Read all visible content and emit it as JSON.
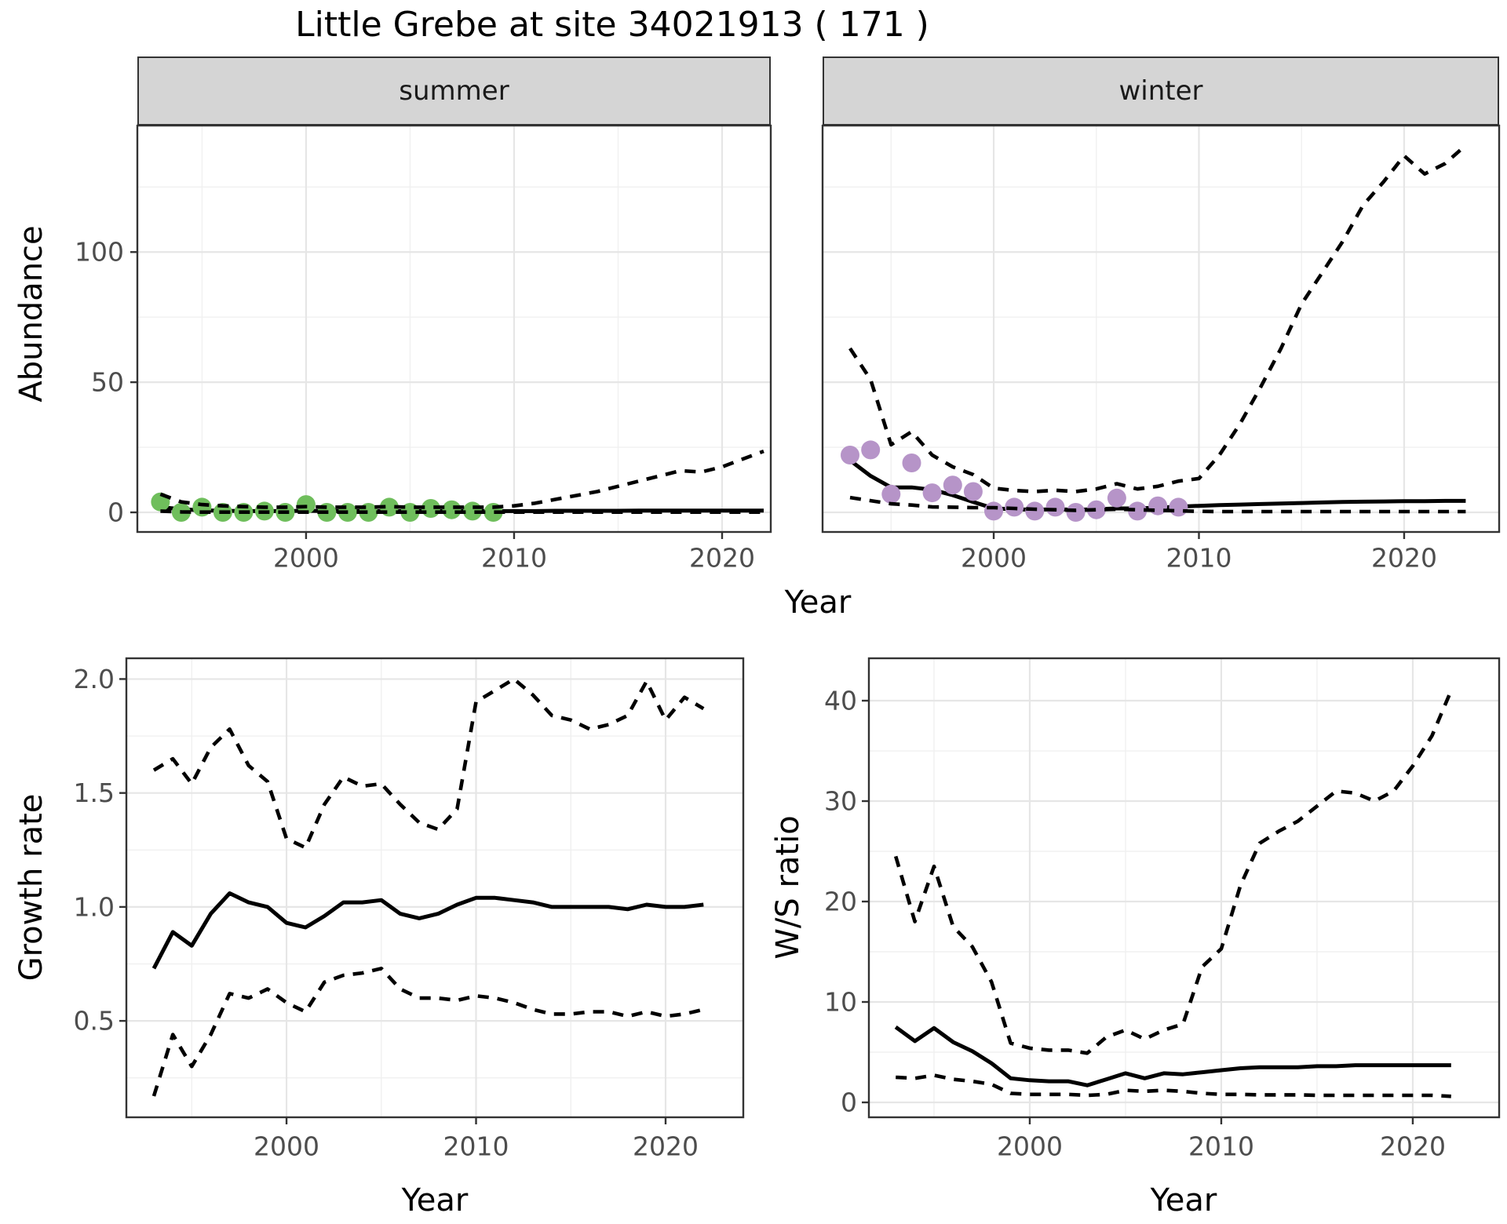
{
  "title": "Little Grebe at site 34021913 ( 171 )",
  "shared_x_label": "Year",
  "chart_data": [
    {
      "id": "abundance_summer",
      "type": "line",
      "facet_label": "summer",
      "xlabel": "Year",
      "ylabel": "Abundance",
      "x_ticks": [
        2000,
        2010,
        2020
      ],
      "x_tick_labels": [
        "2000",
        "2010",
        "2020"
      ],
      "x_minor": [
        1995,
        2005,
        2015,
        2025
      ],
      "y_ticks": [
        0,
        50,
        100
      ],
      "y_tick_labels": [
        "0",
        "50",
        "100"
      ],
      "y_minor": [
        25,
        75,
        125
      ],
      "xlim": [
        1991.89,
        2022.34
      ],
      "ylim": [
        -7.53,
        148.6
      ],
      "grid": true,
      "legend_position": "none",
      "point_color": "#6FBE5C",
      "points": {
        "name": "observed",
        "years": [
          1993,
          1994,
          1995,
          1996,
          1997,
          1998,
          1999,
          2000,
          2001,
          2002,
          2003,
          2004,
          2005,
          2006,
          2007,
          2008,
          2009
        ],
        "values": [
          4,
          0,
          2,
          0,
          0,
          0.5,
          0,
          3,
          0,
          0,
          0,
          2,
          0,
          1.5,
          1,
          0.5,
          0
        ]
      },
      "series": [
        {
          "name": "mean",
          "linetype": "solid",
          "years": [
            1993,
            1994,
            1995,
            1996,
            1997,
            1998,
            1999,
            2000,
            2001,
            2002,
            2003,
            2004,
            2005,
            2006,
            2007,
            2008,
            2009,
            2010,
            2011,
            2012,
            2013,
            2014,
            2015,
            2016,
            2017,
            2018,
            2019,
            2020,
            2021,
            2022
          ],
          "values": [
            2,
            1.2,
            0.8,
            0.6,
            0.5,
            0.5,
            0.5,
            0.6,
            0.5,
            0.5,
            0.5,
            0.5,
            0.5,
            0.5,
            0.5,
            0.5,
            0.5,
            0.5,
            0.5,
            0.6,
            0.6,
            0.6,
            0.6,
            0.7,
            0.7,
            0.7,
            0.7,
            0.7,
            0.7,
            0.7
          ]
        },
        {
          "name": "upper_95ci",
          "linetype": "dashed",
          "years": [
            1993,
            1994,
            1995,
            1996,
            1997,
            1998,
            1999,
            2000,
            2001,
            2002,
            2003,
            2004,
            2005,
            2006,
            2007,
            2008,
            2009,
            2010,
            2011,
            2012,
            2013,
            2014,
            2015,
            2016,
            2017,
            2018,
            2019,
            2020,
            2021,
            2022
          ],
          "values": [
            7,
            4,
            3,
            2.5,
            2.2,
            2,
            2,
            2.2,
            2,
            2,
            2,
            2.2,
            2,
            2,
            2,
            2,
            2,
            2.5,
            3.5,
            5,
            6.5,
            8,
            10,
            12,
            14,
            16,
            15.5,
            17.5,
            20.5,
            23.5
          ]
        },
        {
          "name": "lower_95ci",
          "linetype": "dashed",
          "years": [
            1993,
            1994,
            1995,
            1996,
            1997,
            1998,
            1999,
            2000,
            2001,
            2002,
            2003,
            2004,
            2005,
            2006,
            2007,
            2008,
            2009,
            2010,
            2011,
            2012,
            2013,
            2014,
            2015,
            2016,
            2017,
            2018,
            2019,
            2020,
            2021,
            2022
          ],
          "values": [
            0.5,
            0.2,
            0.1,
            0.1,
            0.1,
            0.1,
            0.1,
            0.1,
            0.1,
            0.1,
            0.1,
            0.1,
            0.1,
            0.1,
            0.1,
            0.1,
            0.1,
            0.1,
            0.1,
            0.1,
            0.1,
            0.1,
            0.1,
            0.1,
            0.1,
            0.1,
            0.1,
            0.1,
            0.1,
            0.1
          ]
        }
      ]
    },
    {
      "id": "abundance_winter",
      "type": "line",
      "facet_label": "winter",
      "xlabel": "Year",
      "ylabel": "Abundance",
      "x_ticks": [
        2000,
        2010,
        2020
      ],
      "x_tick_labels": [
        "2000",
        "2010",
        "2020"
      ],
      "x_minor": [
        1995,
        2005,
        2015,
        2025
      ],
      "y_ticks": [
        0,
        50,
        100
      ],
      "y_tick_labels": [
        "0",
        "50",
        "100"
      ],
      "y_minor": [
        25,
        75,
        125
      ],
      "xlim": [
        1991.66,
        2024.63
      ],
      "ylim": [
        -7.53,
        148.6
      ],
      "grid": true,
      "legend_position": "none",
      "point_color": "#B694C8",
      "points": {
        "name": "observed",
        "years": [
          1993,
          1994,
          1995,
          1996,
          1997,
          1998,
          1999,
          2000,
          2001,
          2002,
          2003,
          2004,
          2005,
          2006,
          2007,
          2008,
          2009
        ],
        "values": [
          22,
          24,
          7,
          19,
          7.5,
          10.5,
          8,
          0.5,
          2,
          0.5,
          2,
          0,
          1,
          5.5,
          0.5,
          2.5,
          2
        ]
      },
      "series": [
        {
          "name": "mean",
          "linetype": "solid",
          "years": [
            1993,
            1994,
            1995,
            1996,
            1997,
            1998,
            1999,
            2000,
            2001,
            2002,
            2003,
            2004,
            2005,
            2006,
            2007,
            2008,
            2009,
            2010,
            2011,
            2012,
            2013,
            2014,
            2015,
            2016,
            2017,
            2018,
            2019,
            2020,
            2021,
            2022,
            2023
          ],
          "values": [
            20,
            14,
            9.6,
            9.6,
            8.7,
            6.6,
            4,
            1.5,
            1.2,
            1,
            1.2,
            1,
            1.2,
            1.5,
            1.5,
            1.8,
            2.2,
            2.5,
            2.8,
            3,
            3.2,
            3.4,
            3.6,
            3.8,
            4,
            4.1,
            4.2,
            4.3,
            4.3,
            4.4,
            4.4
          ]
        },
        {
          "name": "upper_95ci",
          "linetype": "dashed",
          "years": [
            1993,
            1994,
            1995,
            1996,
            1997,
            1998,
            1999,
            2000,
            2001,
            2002,
            2003,
            2004,
            2005,
            2006,
            2007,
            2008,
            2009,
            2010,
            2011,
            2012,
            2013,
            2014,
            2015,
            2016,
            2017,
            2018,
            2019,
            2020,
            2021,
            2022,
            2023
          ],
          "values": [
            63,
            51,
            26,
            31,
            22,
            17.5,
            14.5,
            9.3,
            8.4,
            8,
            8.5,
            8,
            9,
            11,
            9,
            10,
            12,
            13,
            22,
            34,
            48,
            63,
            80,
            92,
            104,
            118,
            127,
            137,
            130,
            134,
            141
          ]
        },
        {
          "name": "lower_95ci",
          "linetype": "dashed",
          "years": [
            1993,
            1994,
            1995,
            1996,
            1997,
            1998,
            1999,
            2000,
            2001,
            2002,
            2003,
            2004,
            2005,
            2006,
            2007,
            2008,
            2009,
            2010,
            2011,
            2012,
            2013,
            2014,
            2015,
            2016,
            2017,
            2018,
            2019,
            2020,
            2021,
            2022,
            2023
          ],
          "values": [
            5.7,
            4.5,
            3.3,
            2.8,
            2.1,
            2,
            1.8,
            1.8,
            1.5,
            1.2,
            1,
            0.8,
            1,
            1.2,
            1,
            0.8,
            0.6,
            0.4,
            0.3,
            0.3,
            0.3,
            0.3,
            0.3,
            0.3,
            0.3,
            0.3,
            0.3,
            0.3,
            0.3,
            0.3,
            0.3
          ]
        }
      ]
    },
    {
      "id": "growth_rate",
      "type": "line",
      "facet_label": "",
      "xlabel": "Year",
      "ylabel": "Growth rate",
      "x_ticks": [
        2000,
        2010,
        2020
      ],
      "x_tick_labels": [
        "2000",
        "2010",
        "2020"
      ],
      "x_minor": [
        1995,
        2005,
        2015,
        2025
      ],
      "y_ticks": [
        0.5,
        1.0,
        1.5,
        2.0
      ],
      "y_tick_labels": [
        "0.5",
        "1.0",
        "1.5",
        "2.0"
      ],
      "y_minor": [
        0.25,
        0.75,
        1.25,
        1.75
      ],
      "xlim": [
        1991.55,
        2024.1
      ],
      "ylim": [
        0.077,
        2.091
      ],
      "grid": true,
      "legend_position": "none",
      "series": [
        {
          "name": "mean",
          "linetype": "solid",
          "years": [
            1993,
            1994,
            1995,
            1996,
            1997,
            1998,
            1999,
            2000,
            2001,
            2002,
            2003,
            2004,
            2005,
            2006,
            2007,
            2008,
            2009,
            2010,
            2011,
            2012,
            2013,
            2014,
            2015,
            2016,
            2017,
            2018,
            2019,
            2020,
            2021,
            2022
          ],
          "values": [
            0.73,
            0.89,
            0.83,
            0.97,
            1.06,
            1.02,
            1.0,
            0.93,
            0.91,
            0.96,
            1.02,
            1.02,
            1.03,
            0.97,
            0.95,
            0.97,
            1.01,
            1.04,
            1.04,
            1.03,
            1.02,
            1.0,
            1.0,
            1.0,
            1.0,
            0.99,
            1.01,
            1.0,
            1.0,
            1.01
          ]
        },
        {
          "name": "upper_95ci",
          "linetype": "dashed",
          "years": [
            1993,
            1994,
            1995,
            1996,
            1997,
            1998,
            1999,
            2000,
            2001,
            2002,
            2003,
            2004,
            2005,
            2006,
            2007,
            2008,
            2009,
            2010,
            2011,
            2012,
            2013,
            2014,
            2015,
            2016,
            2017,
            2018,
            2019,
            2020,
            2021,
            2022
          ],
          "values": [
            1.6,
            1.65,
            1.54,
            1.7,
            1.78,
            1.62,
            1.55,
            1.3,
            1.26,
            1.45,
            1.57,
            1.53,
            1.54,
            1.45,
            1.37,
            1.34,
            1.43,
            1.9,
            1.95,
            2.0,
            1.93,
            1.84,
            1.82,
            1.78,
            1.8,
            1.84,
            1.99,
            1.82,
            1.92,
            1.87
          ]
        },
        {
          "name": "lower_95ci",
          "linetype": "dashed",
          "years": [
            1993,
            1994,
            1995,
            1996,
            1997,
            1998,
            1999,
            2000,
            2001,
            2002,
            2003,
            2004,
            2005,
            2006,
            2007,
            2008,
            2009,
            2010,
            2011,
            2012,
            2013,
            2014,
            2015,
            2016,
            2017,
            2018,
            2019,
            2020,
            2021,
            2022
          ],
          "values": [
            0.17,
            0.44,
            0.3,
            0.44,
            0.62,
            0.6,
            0.64,
            0.58,
            0.54,
            0.67,
            0.7,
            0.71,
            0.73,
            0.64,
            0.6,
            0.6,
            0.59,
            0.61,
            0.6,
            0.58,
            0.55,
            0.53,
            0.53,
            0.54,
            0.54,
            0.52,
            0.54,
            0.52,
            0.53,
            0.55
          ]
        }
      ]
    },
    {
      "id": "ws_ratio",
      "type": "line",
      "facet_label": "",
      "xlabel": "Year",
      "ylabel": "W/S ratio",
      "x_ticks": [
        2000,
        2010,
        2020
      ],
      "x_tick_labels": [
        "2000",
        "2010",
        "2020"
      ],
      "x_minor": [
        1995,
        2005,
        2015,
        2025
      ],
      "y_ticks": [
        0,
        10,
        20,
        30,
        40
      ],
      "y_tick_labels": [
        "0",
        "10",
        "20",
        "30",
        "40"
      ],
      "y_minor": [
        5,
        15,
        25,
        35
      ],
      "xlim": [
        1991.6,
        2024.51
      ],
      "ylim": [
        -1.484,
        44.22
      ],
      "grid": true,
      "legend_position": "none",
      "series": [
        {
          "name": "mean",
          "linetype": "solid",
          "years": [
            1993,
            1994,
            1995,
            1996,
            1997,
            1998,
            1999,
            2000,
            2001,
            2002,
            2003,
            2004,
            2005,
            2006,
            2007,
            2008,
            2009,
            2010,
            2011,
            2012,
            2013,
            2014,
            2015,
            2016,
            2017,
            2018,
            2019,
            2020,
            2021,
            2022
          ],
          "values": [
            7.5,
            6.1,
            7.4,
            6.0,
            5.1,
            3.9,
            2.4,
            2.2,
            2.1,
            2.1,
            1.7,
            2.3,
            2.9,
            2.4,
            2.9,
            2.8,
            3.0,
            3.2,
            3.4,
            3.5,
            3.5,
            3.5,
            3.6,
            3.6,
            3.7,
            3.7,
            3.7,
            3.7,
            3.7,
            3.7
          ]
        },
        {
          "name": "upper_95ci",
          "linetype": "dashed",
          "years": [
            1993,
            1994,
            1995,
            1996,
            1997,
            1998,
            1999,
            2000,
            2001,
            2002,
            2003,
            2004,
            2005,
            2006,
            2007,
            2008,
            2009,
            2010,
            2011,
            2012,
            2013,
            2014,
            2015,
            2016,
            2017,
            2018,
            2019,
            2020,
            2021,
            2022
          ],
          "values": [
            24.5,
            18,
            23.5,
            17.5,
            15.5,
            12,
            5.9,
            5.4,
            5.2,
            5.2,
            4.9,
            6.5,
            7.2,
            6.3,
            7.2,
            7.8,
            13.5,
            15.3,
            21.6,
            25.8,
            27,
            28,
            29.5,
            31,
            30.8,
            30,
            31,
            33.5,
            36.5,
            41
          ]
        },
        {
          "name": "lower_95ci",
          "linetype": "dashed",
          "years": [
            1993,
            1994,
            1995,
            1996,
            1997,
            1998,
            1999,
            2000,
            2001,
            2002,
            2003,
            2004,
            2005,
            2006,
            2007,
            2008,
            2009,
            2010,
            2011,
            2012,
            2013,
            2014,
            2015,
            2016,
            2017,
            2018,
            2019,
            2020,
            2021,
            2022
          ],
          "values": [
            2.5,
            2.4,
            2.7,
            2.3,
            2.1,
            1.8,
            0.9,
            0.8,
            0.8,
            0.8,
            0.7,
            0.8,
            1.2,
            1.1,
            1.2,
            1.1,
            0.9,
            0.8,
            0.8,
            0.75,
            0.75,
            0.75,
            0.7,
            0.7,
            0.7,
            0.7,
            0.7,
            0.7,
            0.7,
            0.6
          ]
        }
      ]
    }
  ],
  "style": {
    "grid_major_color": "#E6E6E6",
    "grid_minor_color": "#F0F0F0",
    "panel_border_color": "#333333",
    "strip_fill": "#D5D5D5",
    "tick_label_color": "#4D4D4D",
    "line_color": "#000000",
    "summer_point_color": "#6FBE5C",
    "winter_point_color": "#B694C8"
  }
}
